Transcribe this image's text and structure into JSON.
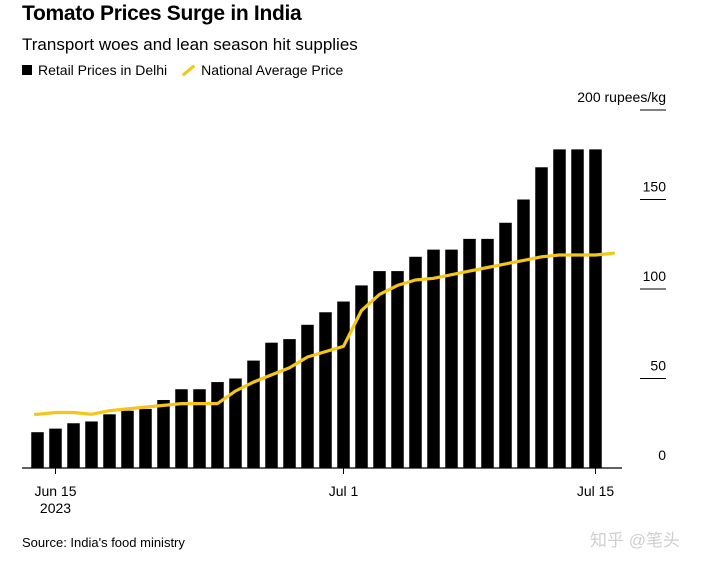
{
  "header": {
    "title": "Tomato Prices Surge in India",
    "subtitle": "Transport woes and lean season hit supplies"
  },
  "legend": {
    "items": [
      {
        "label": "Retail Prices in Delhi",
        "swatch": "square",
        "color": "#000000"
      },
      {
        "label": "National Average Price",
        "swatch": "line",
        "color": "#f5c518"
      }
    ]
  },
  "footer": {
    "source": "Source: India's food ministry",
    "watermark": "知乎 @笔头"
  },
  "chart_data": {
    "type": "bar",
    "unit_label": "200 rupees/kg",
    "ylim": [
      0,
      200
    ],
    "yticks": [
      {
        "value": 0,
        "label": "0"
      },
      {
        "value": 50,
        "label": "50"
      },
      {
        "value": 100,
        "label": "100"
      },
      {
        "value": 150,
        "label": "150"
      },
      {
        "value": 200,
        "label": "200 rupees/kg"
      }
    ],
    "xticks": [
      {
        "date": "2023-06-15",
        "label": "Jun 15",
        "sublabel": "2023"
      },
      {
        "date": "2023-07-01",
        "label": "Jul 1",
        "sublabel": ""
      },
      {
        "date": "2023-07-15",
        "label": "Jul 15",
        "sublabel": ""
      }
    ],
    "x": [
      "2023-06-14",
      "2023-06-15",
      "2023-06-16",
      "2023-06-17",
      "2023-06-18",
      "2023-06-19",
      "2023-06-20",
      "2023-06-21",
      "2023-06-22",
      "2023-06-23",
      "2023-06-24",
      "2023-06-25",
      "2023-06-26",
      "2023-06-27",
      "2023-06-28",
      "2023-06-29",
      "2023-06-30",
      "2023-07-01",
      "2023-07-02",
      "2023-07-03",
      "2023-07-04",
      "2023-07-05",
      "2023-07-06",
      "2023-07-07",
      "2023-07-08",
      "2023-07-09",
      "2023-07-10",
      "2023-07-11",
      "2023-07-12",
      "2023-07-13",
      "2023-07-14",
      "2023-07-15",
      "2023-07-16"
    ],
    "series": [
      {
        "name": "Retail Prices in Delhi",
        "type": "bar",
        "color": "#000000",
        "values": [
          20,
          22,
          25,
          26,
          30,
          32,
          33,
          38,
          44,
          44,
          48,
          50,
          60,
          70,
          72,
          80,
          87,
          93,
          102,
          110,
          110,
          118,
          122,
          122,
          128,
          128,
          137,
          150,
          168,
          178,
          178,
          178,
          null
        ]
      },
      {
        "name": "National Average Price",
        "type": "line",
        "color": "#f5c518",
        "values": [
          30,
          31,
          31,
          30,
          32,
          33,
          34,
          35,
          36,
          36,
          36,
          43,
          48,
          52,
          56,
          62,
          65,
          68,
          88,
          97,
          102,
          105,
          106,
          108,
          110,
          112,
          114,
          116,
          118,
          119,
          119,
          119,
          120
        ]
      }
    ]
  }
}
